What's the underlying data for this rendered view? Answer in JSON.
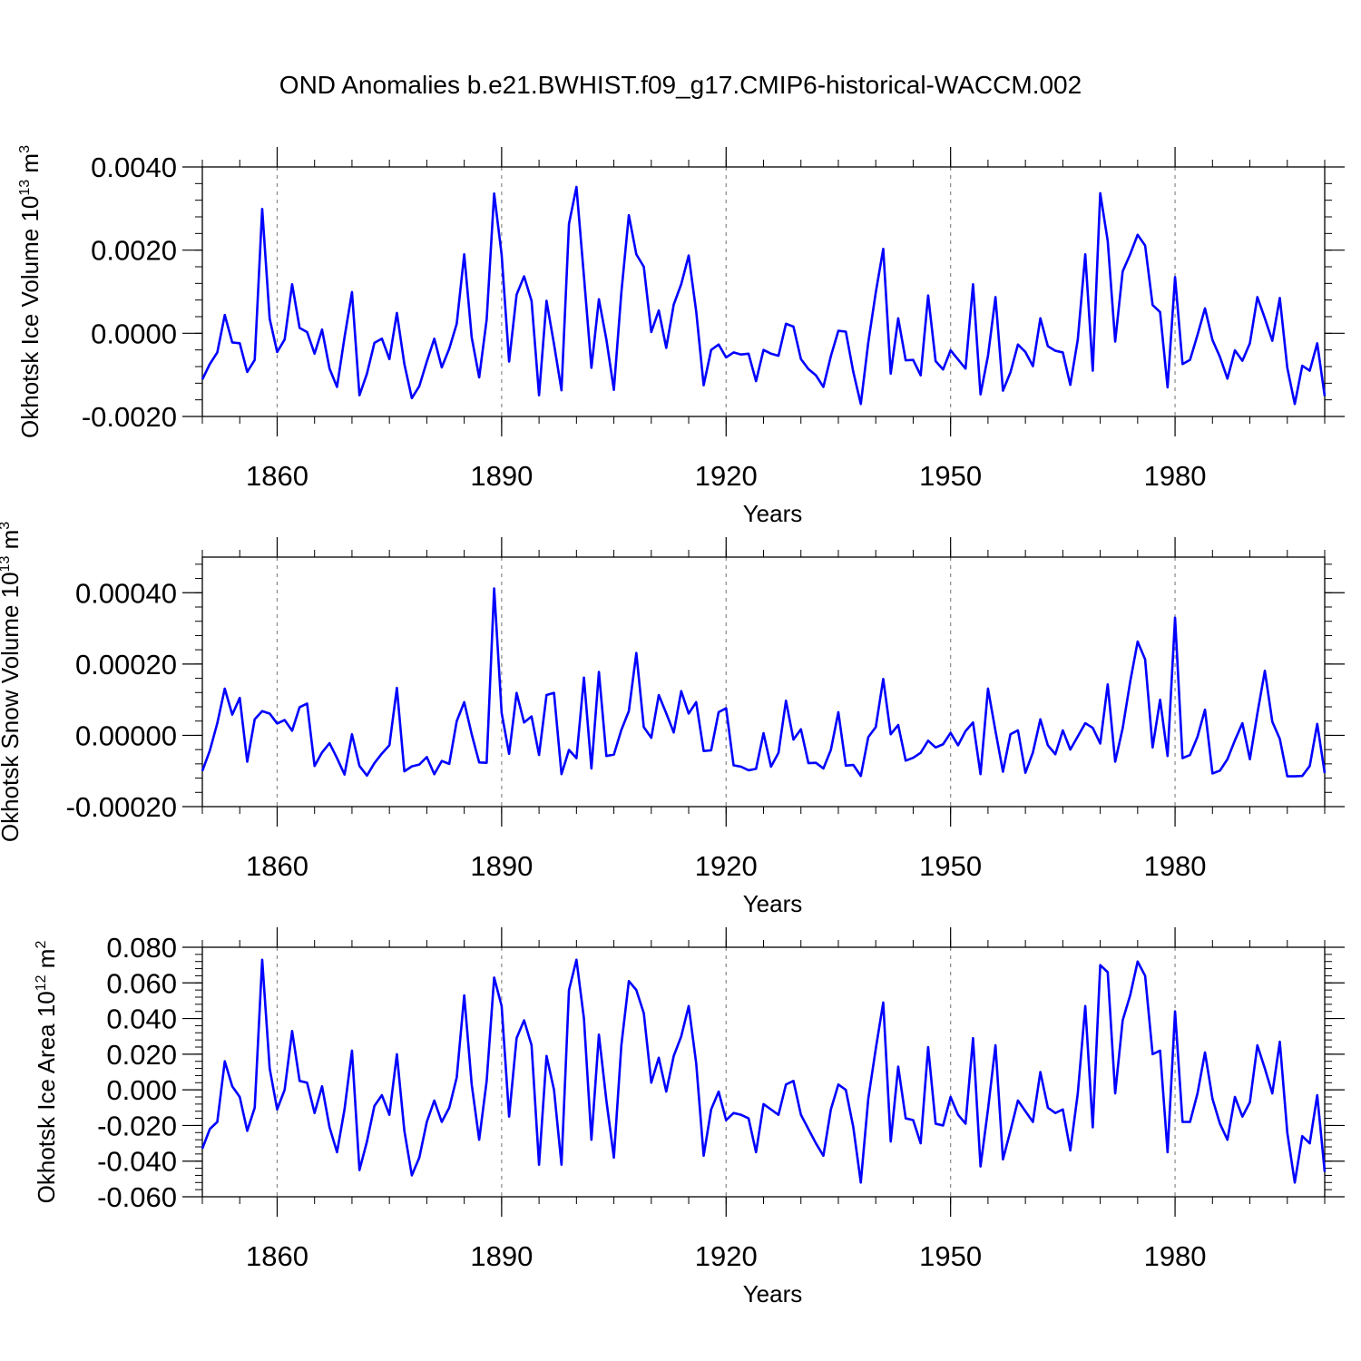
{
  "title": "OND Anomalies b.e21.BWHIST.f09_g17.CMIP6-historical-WACCM.002",
  "colors": {
    "line": "#0000ff",
    "axis": "#000000",
    "grid": "#888888"
  },
  "chart_data": [
    {
      "type": "line",
      "ylabel": "Okhotsk Ice Volume 10",
      "ylabel_exp": "13",
      "ylabel_unit": " m",
      "ylabel_unit_exp": "3",
      "xlabel": "Years",
      "xlim": [
        1850,
        2000
      ],
      "ylim": [
        -0.002,
        0.004
      ],
      "yticks": [
        -0.002,
        0.0,
        0.002,
        0.004
      ],
      "yticklabels": [
        "-0.0020",
        "0.0000",
        "0.0020",
        "0.0040"
      ],
      "xticks": [
        1860,
        1890,
        1920,
        1950,
        1980
      ],
      "xticklabels": [
        "1860",
        "1890",
        "1920",
        "1950",
        "1980"
      ],
      "series": [
        {
          "name": "Okhotsk Ice Volume",
          "start_year": 1850,
          "values": [
            -0.00111,
            -0.00074,
            -0.00046,
            0.00044,
            -0.00022,
            -0.00024,
            -0.00093,
            -0.00064,
            0.00299,
            0.00035,
            -0.00045,
            -0.00015,
            0.00118,
            0.00013,
            3e-05,
            -0.00049,
            9e-05,
            -0.00085,
            -0.00129,
            -0.0001,
            0.00099,
            -0.00149,
            -0.00097,
            -0.00023,
            -0.00013,
            -0.00062,
            0.00049,
            -0.00074,
            -0.00156,
            -0.00127,
            -0.00068,
            -0.00013,
            -0.00082,
            -0.00037,
            0.00023,
            0.0019,
            -0.0001,
            -0.00106,
            0.00033,
            0.00336,
            0.00189,
            -0.00068,
            0.00093,
            0.00137,
            0.00078,
            -0.00149,
            0.00078,
            -0.00026,
            -0.00137,
            0.00263,
            0.00352,
            0.00137,
            -0.00083,
            0.00082,
            -0.00015,
            -0.00136,
            0.00098,
            0.00284,
            0.0019,
            0.0016,
            3e-05,
            0.00055,
            -0.00035,
            0.00069,
            0.00118,
            0.00187,
            0.00053,
            -0.00125,
            -0.0004,
            -0.00027,
            -0.00058,
            -0.00046,
            -0.00051,
            -0.00049,
            -0.00115,
            -0.0004,
            -0.00049,
            -0.00054,
            0.00023,
            0.00016,
            -0.00062,
            -0.00086,
            -0.00101,
            -0.00129,
            -0.00055,
            6e-05,
            4e-05,
            -0.00093,
            -0.0017,
            -0.00022,
            0.00098,
            0.00203,
            -0.00097,
            0.00036,
            -0.00065,
            -0.00064,
            -0.00101,
            0.00091,
            -0.00067,
            -0.00087,
            -0.00041,
            -0.00063,
            -0.00085,
            0.00118,
            -0.00147,
            -0.00054,
            0.00087,
            -0.00138,
            -0.00094,
            -0.00027,
            -0.00045,
            -0.00079,
            0.00036,
            -0.00031,
            -0.00042,
            -0.00046,
            -0.00124,
            -0.00015,
            0.0019,
            -0.0009,
            0.00337,
            0.00222,
            -0.0002,
            0.00149,
            0.0019,
            0.00237,
            0.00211,
            0.00068,
            0.00051,
            -0.0013,
            0.00135,
            -0.00074,
            -0.00064,
            -4e-05,
            0.0006,
            -0.00016,
            -0.00057,
            -0.00109,
            -0.00041,
            -0.00066,
            -0.00024,
            0.00087,
            0.00036,
            -0.00018,
            0.00085,
            -0.00083,
            -0.0017,
            -0.00078,
            -0.0009,
            -0.00024,
            -0.00151
          ]
        }
      ]
    },
    {
      "type": "line",
      "ylabel": "Okhotsk Snow Volume 10",
      "ylabel_exp": "13",
      "ylabel_unit": " m",
      "ylabel_unit_exp": "3",
      "xlabel": "Years",
      "xlim": [
        1850,
        2000
      ],
      "ylim": [
        -0.0002,
        0.0005
      ],
      "yticks": [
        -0.0002,
        0.0,
        0.0002,
        0.0004
      ],
      "yticklabels": [
        "-0.00020",
        "0.00000",
        "0.00020",
        "0.00040"
      ],
      "xticks": [
        1860,
        1890,
        1920,
        1950,
        1980
      ],
      "xticklabels": [
        "1860",
        "1890",
        "1920",
        "1950",
        "1980"
      ],
      "series": [
        {
          "name": "Okhotsk Snow Volume",
          "start_year": 1850,
          "values": [
            -0.0001,
            -4.3e-05,
            3.4e-05,
            0.000131,
            5.8e-05,
            0.000105,
            -7.4e-05,
            4.5e-05,
            6.8e-05,
            6.1e-05,
            3.3e-05,
            4.3e-05,
            1.3e-05,
            7.9e-05,
            8.9e-05,
            -8.6e-05,
            -4.8e-05,
            -2.2e-05,
            -6.4e-05,
            -0.00011,
            3e-06,
            -8.6e-05,
            -0.000113,
            -7.8e-05,
            -5.1e-05,
            -2.8e-05,
            0.000133,
            -0.000101,
            -8.7e-05,
            -8.2e-05,
            -6.1e-05,
            -0.000109,
            -7.2e-05,
            -8e-05,
            4e-05,
            9.3e-05,
            3e-06,
            -7.6e-05,
            -7.7e-05,
            0.000412,
            6.3e-05,
            -5.2e-05,
            0.000119,
            3.6e-05,
            5.3e-05,
            -5.5e-05,
            0.000113,
            0.000119,
            -0.000109,
            -4.1e-05,
            -6.4e-05,
            0.000162,
            -9.3e-05,
            0.000178,
            -5.8e-05,
            -5.4e-05,
            1.5e-05,
            6.8e-05,
            0.000231,
            2.3e-05,
            -7e-06,
            0.000113,
            6.2e-05,
            8e-06,
            0.000124,
            6.1e-05,
            9.3e-05,
            -4.4e-05,
            -4.2e-05,
            6.5e-05,
            7.6e-05,
            -8.4e-05,
            -8.8e-05,
            -9.8e-05,
            -9.4e-05,
            6e-06,
            -8.8e-05,
            -4.9e-05,
            9.7e-05,
            -1.2e-05,
            1.7e-05,
            -7.8e-05,
            -7.7e-05,
            -9.3e-05,
            -4.1e-05,
            6.5e-05,
            -8.5e-05,
            -8.3e-05,
            -0.000114,
            -5e-06,
            2.3e-05,
            0.000158,
            3e-06,
            2.9e-05,
            -7.1e-05,
            -6.3e-05,
            -4.9e-05,
            -1.5e-05,
            -3.4e-05,
            -2.5e-05,
            7e-06,
            -2.8e-05,
            1.2e-05,
            3.6e-05,
            -0.000109,
            0.000131,
            1.2e-05,
            -0.000102,
            3e-06,
            1.4e-05,
            -0.000105,
            -4.8e-05,
            4.5e-05,
            -2.8e-05,
            -5.3e-05,
            1.4e-05,
            -4e-05,
            -3e-06,
            3.4e-05,
            2.1e-05,
            -2.3e-05,
            0.000143,
            -7.4e-05,
            2e-05,
            0.00015,
            0.000263,
            0.000213,
            -3.4e-05,
            0.0001,
            -5.8e-05,
            0.00033,
            -6.4e-05,
            -5.5e-05,
            -4e-06,
            7.2e-05,
            -0.000107,
            -9.9e-05,
            -6.7e-05,
            -1.4e-05,
            3.4e-05,
            -6.7e-05,
            6.1e-05,
            0.000181,
            3.8e-05,
            -1e-05,
            -0.000115,
            -0.000115,
            -0.000114,
            -8.6e-05,
            3.2e-05,
            -0.000106
          ]
        }
      ]
    },
    {
      "type": "line",
      "ylabel": "Okhotsk Ice Area 10",
      "ylabel_exp": "12",
      "ylabel_unit": " m",
      "ylabel_unit_exp": "2",
      "xlabel": "Years",
      "xlim": [
        1850,
        2000
      ],
      "ylim": [
        -0.06,
        0.08
      ],
      "yticks": [
        -0.06,
        -0.04,
        -0.02,
        0.0,
        0.02,
        0.04,
        0.06,
        0.08
      ],
      "yticklabels": [
        "-0.060",
        "-0.040",
        "-0.020",
        "0.000",
        "0.020",
        "0.040",
        "0.060",
        "0.080"
      ],
      "xticks": [
        1860,
        1890,
        1920,
        1950,
        1980
      ],
      "xticklabels": [
        "1860",
        "1890",
        "1920",
        "1950",
        "1980"
      ],
      "series": [
        {
          "name": "Okhotsk Ice Area",
          "start_year": 1850,
          "values": [
            -0.033,
            -0.022,
            -0.018,
            0.016,
            0.002,
            -0.004,
            -0.023,
            -0.01,
            0.073,
            0.012,
            -0.011,
            0.0,
            0.033,
            0.005,
            0.004,
            -0.013,
            0.002,
            -0.021,
            -0.035,
            -0.011,
            0.022,
            -0.045,
            -0.029,
            -0.009,
            -0.003,
            -0.014,
            0.02,
            -0.023,
            -0.048,
            -0.038,
            -0.018,
            -0.006,
            -0.018,
            -0.01,
            0.007,
            0.053,
            0.003,
            -0.028,
            0.005,
            0.063,
            0.047,
            -0.015,
            0.029,
            0.039,
            0.025,
            -0.042,
            0.019,
            0.0,
            -0.042,
            0.056,
            0.073,
            0.04,
            -0.028,
            0.031,
            -0.006,
            -0.038,
            0.025,
            0.061,
            0.056,
            0.043,
            0.004,
            0.018,
            -0.001,
            0.019,
            0.03,
            0.047,
            0.015,
            -0.037,
            -0.011,
            -0.001,
            -0.017,
            -0.013,
            -0.014,
            -0.016,
            -0.035,
            -0.008,
            -0.011,
            -0.014,
            0.003,
            0.005,
            -0.014,
            -0.022,
            -0.03,
            -0.037,
            -0.011,
            0.003,
            0.0,
            -0.021,
            -0.052,
            -0.005,
            0.023,
            0.049,
            -0.029,
            0.013,
            -0.016,
            -0.017,
            -0.03,
            0.024,
            -0.019,
            -0.02,
            -0.004,
            -0.014,
            -0.019,
            0.029,
            -0.043,
            -0.011,
            0.025,
            -0.039,
            -0.023,
            -0.006,
            -0.012,
            -0.018,
            0.01,
            -0.01,
            -0.013,
            -0.011,
            -0.034,
            -0.002,
            0.047,
            -0.021,
            0.07,
            0.066,
            -0.002,
            0.039,
            0.053,
            0.072,
            0.064,
            0.02,
            0.022,
            -0.035,
            0.044,
            -0.018,
            -0.018,
            -0.002,
            0.021,
            -0.005,
            -0.019,
            -0.028,
            -0.004,
            -0.015,
            -0.007,
            0.025,
            0.012,
            -0.002,
            0.027,
            -0.024,
            -0.052,
            -0.026,
            -0.03,
            -0.003,
            -0.046
          ]
        }
      ]
    }
  ]
}
